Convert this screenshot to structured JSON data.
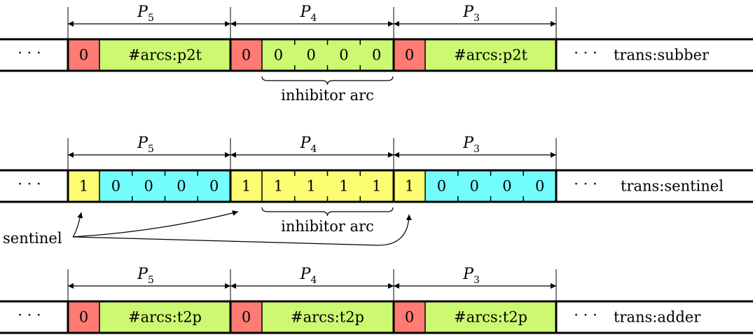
{
  "colors": {
    "red": "#ff7b74",
    "green": "#cdf871",
    "yellow": "#fdfd73",
    "cyan": "#73fcfc"
  },
  "rows": [
    {
      "dims": [
        {
          "label": "P",
          "sub": "5"
        },
        {
          "label": "P",
          "sub": "4"
        },
        {
          "label": "P",
          "sub": "3"
        }
      ],
      "left_ellipsis": "· · ·",
      "right_ellipsis": "· · ·",
      "right_label": "trans:subber",
      "segments": [
        {
          "head": "0",
          "head_color": "red",
          "body_color": "green",
          "body": [
            "#arcs:p2t"
          ]
        },
        {
          "head": "0",
          "head_color": "red",
          "body_color": "green",
          "body": [
            "0",
            "0",
            "0",
            "0"
          ]
        },
        {
          "head": "0",
          "head_color": "red",
          "body_color": "green",
          "body": [
            "#arcs:p2t"
          ]
        }
      ],
      "brace_label": "inhibitor arc"
    },
    {
      "dims": [
        {
          "label": "P",
          "sub": "5"
        },
        {
          "label": "P",
          "sub": "4"
        },
        {
          "label": "P",
          "sub": "3"
        }
      ],
      "left_ellipsis": "· · ·",
      "right_ellipsis": "· · ·",
      "right_label": "trans:sentinel",
      "segments": [
        {
          "head": "1",
          "head_color": "yellow",
          "body_color": "cyan",
          "body": [
            "0",
            "0",
            "0",
            "0"
          ]
        },
        {
          "head": "1",
          "head_color": "yellow",
          "body_color": "yellow",
          "body": [
            "1",
            "1",
            "1",
            "1"
          ]
        },
        {
          "head": "1",
          "head_color": "yellow",
          "body_color": "cyan",
          "body": [
            "0",
            "0",
            "0",
            "0"
          ]
        }
      ],
      "brace_label": "inhibitor arc",
      "annotation": "sentinel"
    },
    {
      "dims": [
        {
          "label": "P",
          "sub": "5"
        },
        {
          "label": "P",
          "sub": "4"
        },
        {
          "label": "P",
          "sub": "3"
        }
      ],
      "left_ellipsis": "· · ·",
      "right_ellipsis": "· · ·",
      "right_label": "trans:adder",
      "segments": [
        {
          "head": "0",
          "head_color": "red",
          "body_color": "green",
          "body": [
            "#arcs:t2p"
          ]
        },
        {
          "head": "0",
          "head_color": "red",
          "body_color": "green",
          "body": [
            "#arcs:t2p"
          ]
        },
        {
          "head": "0",
          "head_color": "red",
          "body_color": "green",
          "body": [
            "#arcs:t2p"
          ]
        }
      ]
    }
  ]
}
